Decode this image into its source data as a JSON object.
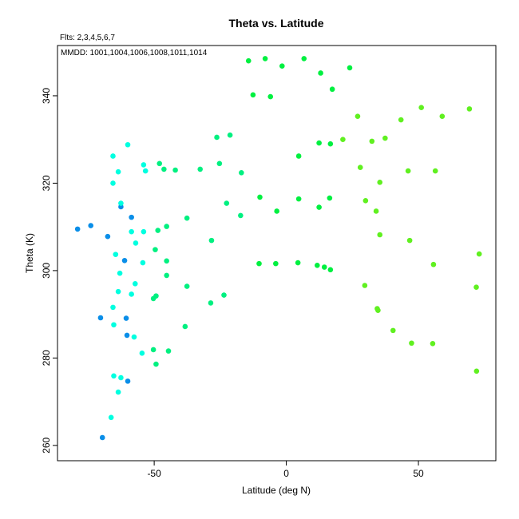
{
  "chart_data": {
    "type": "scatter",
    "title": "Theta vs. Latitude",
    "annotations": [
      "Flts: 2,3,4,5,6,7",
      "MMDD: 1001,1004,1006,1008,1011,1014"
    ],
    "xlabel": "Latitude (deg N)",
    "ylabel": "Theta (K)",
    "xlim": [
      -86.6,
      79.3
    ],
    "ylim": [
      256.5,
      351.5
    ],
    "xticks": [
      -50,
      0,
      50
    ],
    "yticks": [
      260,
      280,
      300,
      320,
      340
    ],
    "grid": false,
    "legend": "none",
    "series": [
      {
        "color": "#0a8ee8",
        "points": [
          [
            -79,
            309.5
          ],
          [
            -74,
            310.3
          ],
          [
            -67.6,
            307.8
          ],
          [
            -70.3,
            289.2
          ],
          [
            -62.6,
            314.6
          ],
          [
            -58.6,
            312.2
          ],
          [
            -61.2,
            302.3
          ],
          [
            -60.6,
            289.1
          ],
          [
            -60.3,
            285.2
          ],
          [
            -60,
            274.7
          ],
          [
            -69.6,
            261.8
          ]
        ]
      },
      {
        "color": "#00ffe0",
        "points": [
          [
            -65.6,
            326.2
          ],
          [
            -60,
            328.8
          ],
          [
            -63.6,
            322.6
          ],
          [
            -65.6,
            320.0
          ],
          [
            -62.6,
            315.4
          ],
          [
            -58.6,
            308.9
          ],
          [
            -57,
            306.3
          ],
          [
            -64.6,
            303.7
          ],
          [
            -63,
            299.4
          ],
          [
            -57.2,
            297.0
          ],
          [
            -63.6,
            295.2
          ],
          [
            -58.6,
            294.6
          ],
          [
            -65.6,
            291.6
          ],
          [
            -65.3,
            287.6
          ],
          [
            -57.6,
            284.8
          ],
          [
            -65.3,
            275.9
          ],
          [
            -62.6,
            275.5
          ],
          [
            -63.6,
            272.2
          ],
          [
            -66.3,
            266.4
          ],
          [
            -54,
            324.2
          ],
          [
            -53.3,
            322.8
          ],
          [
            -54,
            308.9
          ],
          [
            -54.3,
            301.8
          ],
          [
            -54.6,
            281.1
          ]
        ]
      },
      {
        "color": "#00f080",
        "points": [
          [
            -48,
            324.5
          ],
          [
            -46.3,
            323.2
          ],
          [
            -42,
            323.0
          ],
          [
            -45.3,
            310.1
          ],
          [
            -48.6,
            309.2
          ],
          [
            -49.6,
            304.8
          ],
          [
            -45.3,
            302.2
          ],
          [
            -45.3,
            298.9
          ],
          [
            -49.3,
            294.2
          ],
          [
            -50.3,
            293.6
          ],
          [
            -50.3,
            281.9
          ],
          [
            -44.6,
            281.6
          ],
          [
            -49.3,
            278.6
          ],
          [
            -37.6,
            312.0
          ],
          [
            -37.6,
            296.4
          ],
          [
            -38.3,
            287.2
          ],
          [
            -32.6,
            323.2
          ],
          [
            -26.3,
            330.5
          ],
          [
            -25.3,
            324.5
          ],
          [
            -21.3,
            331.0
          ],
          [
            -28.3,
            306.9
          ],
          [
            -22.6,
            315.4
          ],
          [
            -28.6,
            292.6
          ],
          [
            -23.6,
            294.4
          ],
          [
            -17,
            322.4
          ],
          [
            -17.3,
            312.6
          ]
        ]
      },
      {
        "color": "#00f040",
        "points": [
          [
            -14.3,
            348.0
          ],
          [
            -8,
            348.5
          ],
          [
            -1.6,
            346.8
          ],
          [
            6.7,
            348.5
          ],
          [
            13,
            345.2
          ],
          [
            24,
            346.4
          ],
          [
            -12.6,
            340.2
          ],
          [
            -6,
            339.8
          ],
          [
            17.4,
            341.5
          ],
          [
            -10,
            316.8
          ],
          [
            -3.6,
            313.6
          ],
          [
            4.7,
            316.4
          ],
          [
            12.4,
            314.5
          ],
          [
            16.4,
            316.6
          ],
          [
            4.7,
            326.2
          ],
          [
            12.4,
            329.2
          ],
          [
            16.7,
            329.0
          ],
          [
            -10.3,
            301.6
          ],
          [
            -4,
            301.6
          ],
          [
            4.4,
            301.8
          ],
          [
            11.7,
            301.2
          ],
          [
            14.4,
            300.8
          ],
          [
            16.7,
            300.2
          ]
        ]
      },
      {
        "color": "#60f020",
        "points": [
          [
            21.4,
            330.0
          ],
          [
            27,
            335.3
          ],
          [
            28,
            323.6
          ],
          [
            32.4,
            329.6
          ],
          [
            37.4,
            330.3
          ],
          [
            43.4,
            334.5
          ],
          [
            51.1,
            337.3
          ],
          [
            59,
            335.3
          ],
          [
            69.3,
            337.0
          ],
          [
            46.1,
            322.8
          ],
          [
            56.4,
            322.8
          ],
          [
            35.4,
            320.2
          ],
          [
            30,
            316.0
          ],
          [
            34,
            313.6
          ],
          [
            35.4,
            308.2
          ],
          [
            46.7,
            306.9
          ],
          [
            55.7,
            301.4
          ],
          [
            73,
            303.8
          ],
          [
            29.7,
            296.6
          ],
          [
            34.4,
            291.3
          ],
          [
            34.7,
            290.9
          ],
          [
            40.4,
            286.3
          ],
          [
            47.4,
            283.4
          ],
          [
            55.4,
            283.3
          ],
          [
            71.9,
            296.2
          ],
          [
            72,
            277.0
          ]
        ]
      }
    ]
  }
}
